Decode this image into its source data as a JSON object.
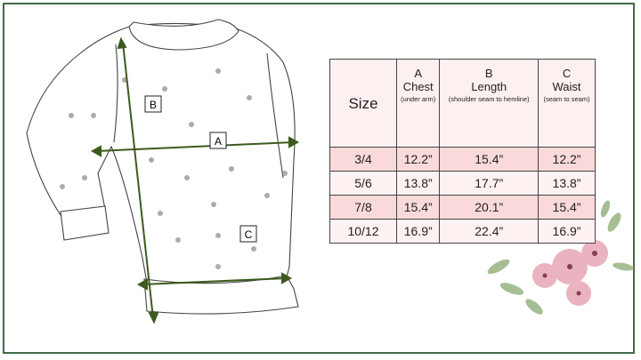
{
  "diagram_labels": {
    "a": "A",
    "b": "B",
    "c": "C"
  },
  "table": {
    "headers": [
      {
        "letter": "",
        "name": "Size",
        "note": ""
      },
      {
        "letter": "A",
        "name": "Chest",
        "note": "(under arm)"
      },
      {
        "letter": "B",
        "name": "Length",
        "note": "(shoulder seam to hemline)"
      },
      {
        "letter": "C",
        "name": "Waist",
        "note": "(seam to seam)"
      }
    ],
    "rows": [
      [
        "3/4",
        "12.2”",
        "15.4”",
        "12.2”"
      ],
      [
        "5/6",
        "13.8”",
        "17.7”",
        "13.8”"
      ],
      [
        "7/8",
        "15.4”",
        "20.1”",
        "15.4”"
      ],
      [
        "10/12",
        "16.9”",
        "22.4”",
        "16.9”"
      ]
    ]
  },
  "colors": {
    "frame": "#3e6b4a",
    "arrow": "#3d5a1e",
    "row_pink": "#f9d9d9",
    "row_light": "#fdf1f1"
  }
}
